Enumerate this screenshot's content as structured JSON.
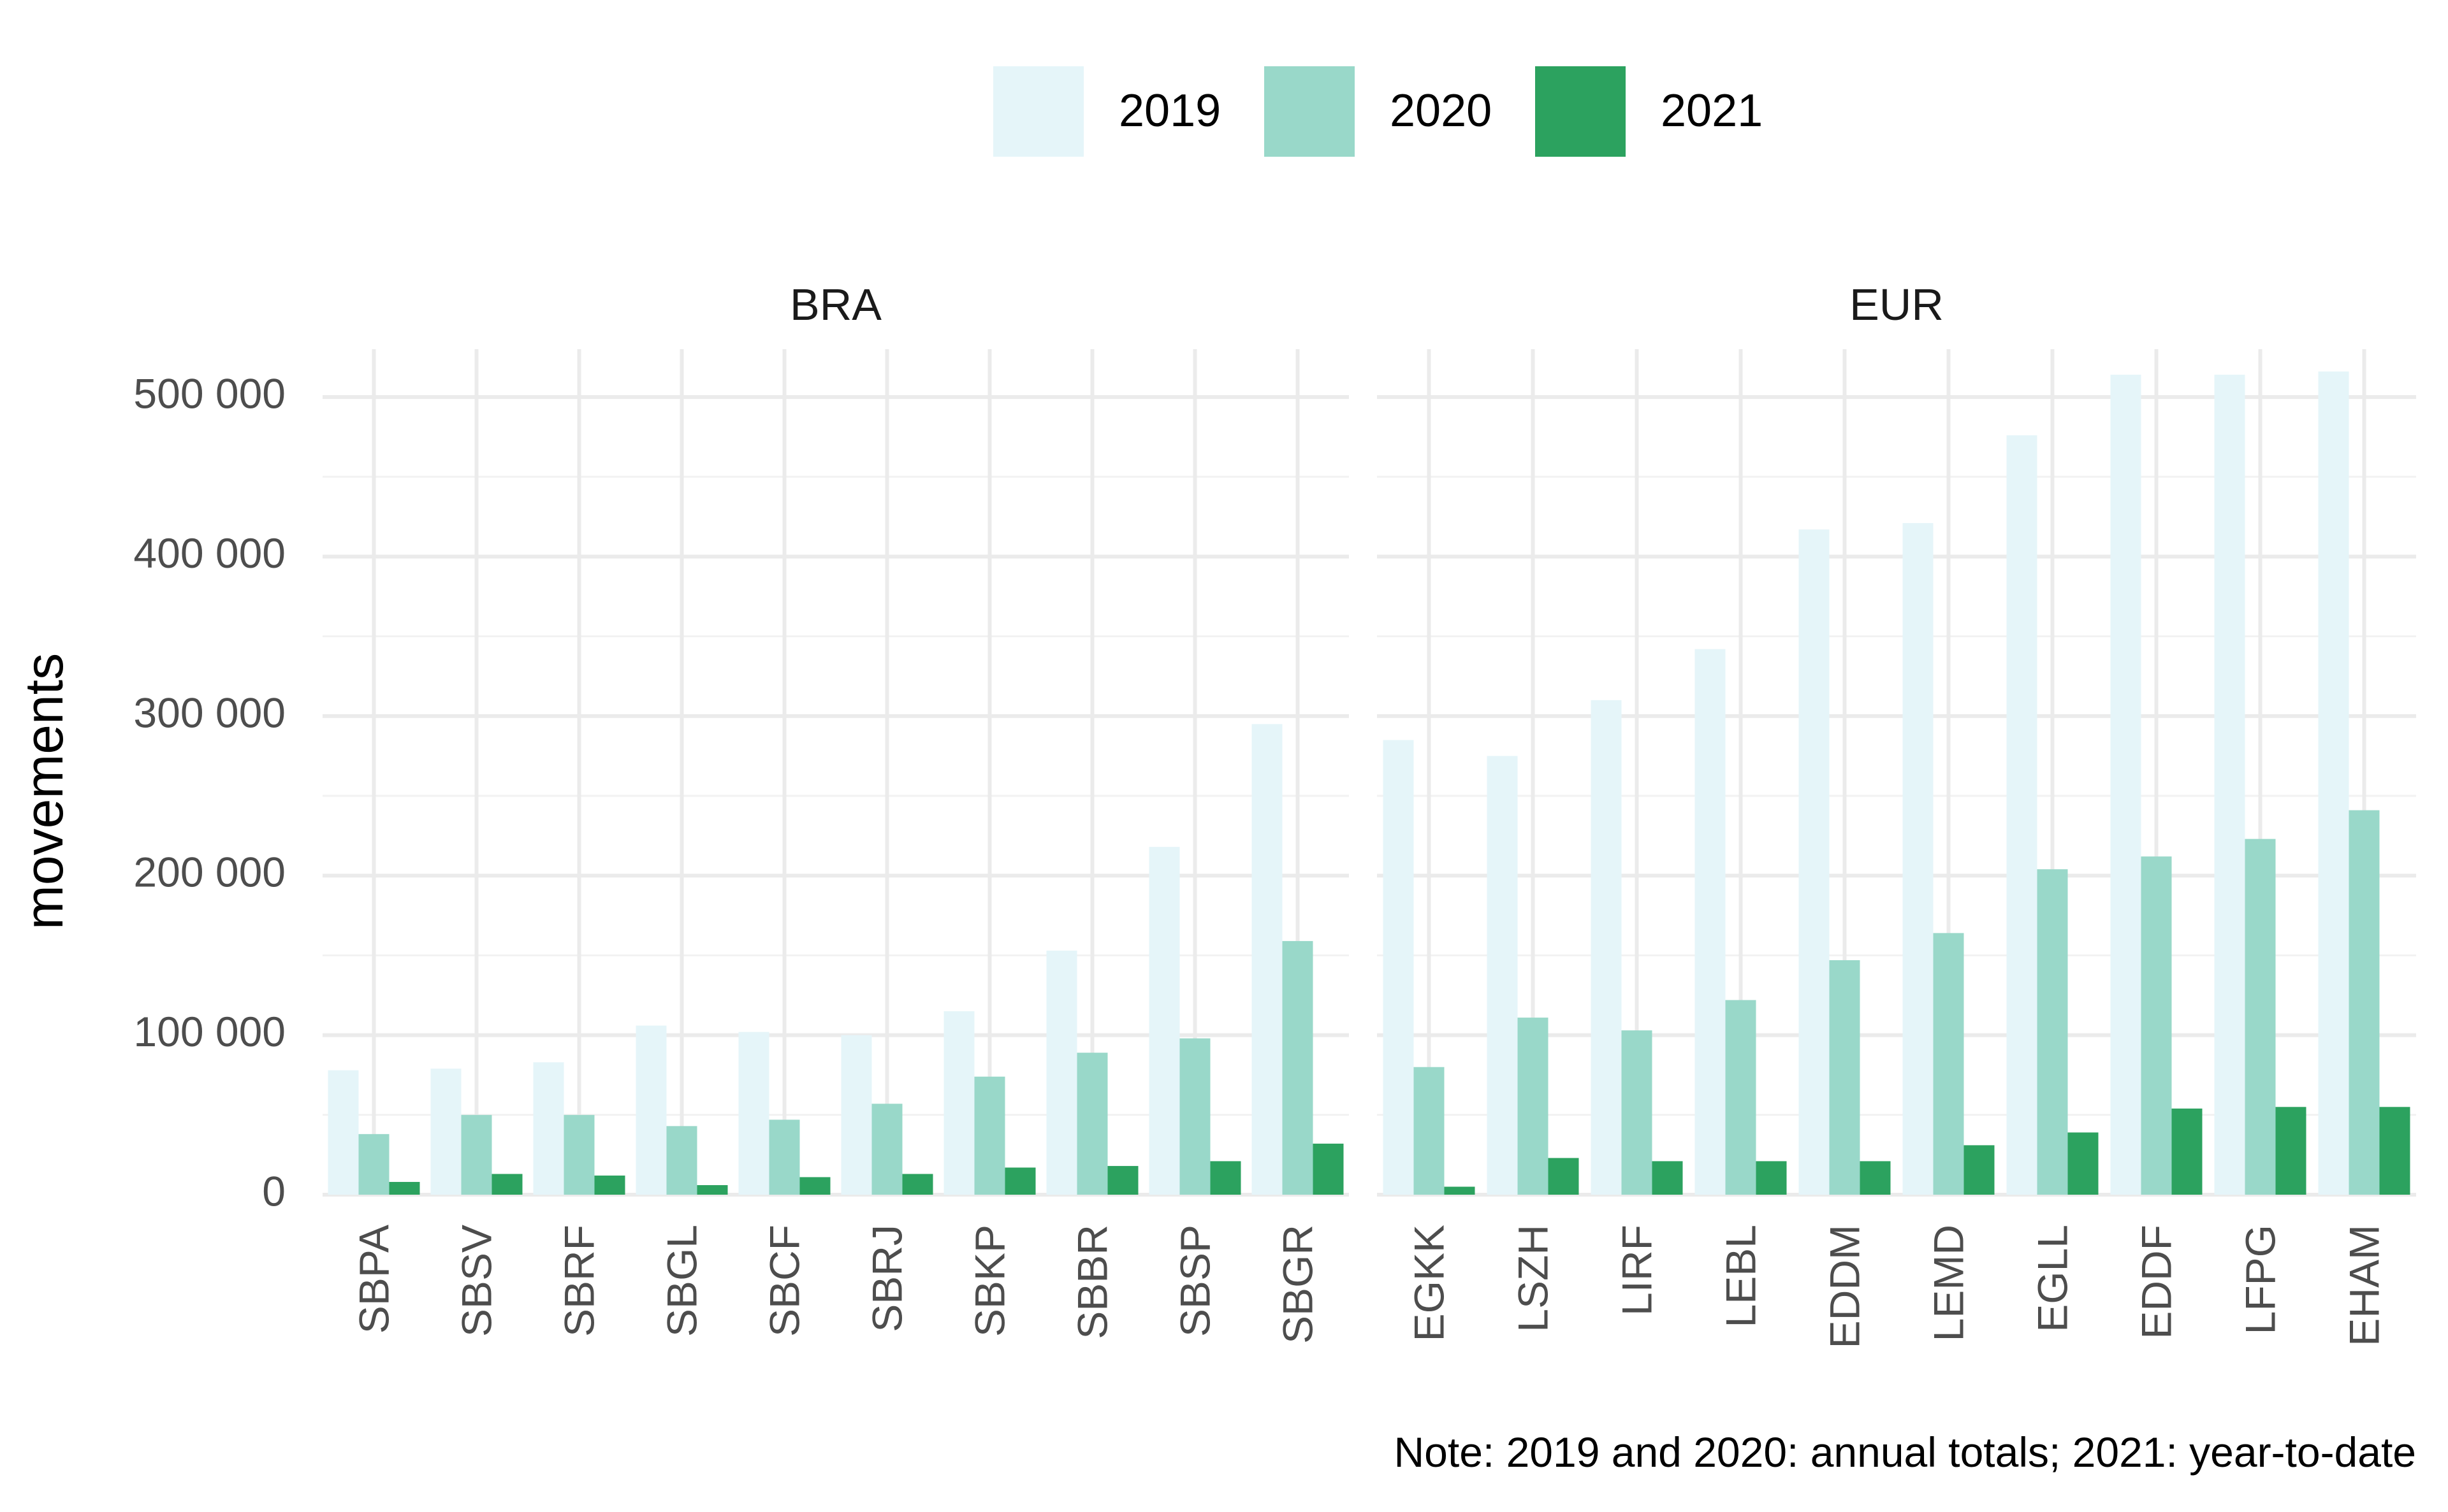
{
  "chart_data": {
    "type": "bar",
    "ylabel": "movements",
    "ylim": [
      0,
      530000
    ],
    "yticks": [
      0,
      100000,
      200000,
      300000,
      400000,
      500000
    ],
    "ytick_labels": [
      "0",
      "100 000",
      "200 000",
      "300 000",
      "400 000",
      "500 000"
    ],
    "legend_position": "top",
    "grid": true,
    "series": [
      {
        "name": "2019",
        "color": "#e5f5f9"
      },
      {
        "name": "2020",
        "color": "#99d8c9"
      },
      {
        "name": "2021",
        "color": "#2ca25f"
      }
    ],
    "facets": [
      {
        "label": "BRA",
        "categories": [
          "SBPA",
          "SBSV",
          "SBRF",
          "SBGL",
          "SBCF",
          "SBRJ",
          "SBKP",
          "SBBR",
          "SBSP",
          "SBGR"
        ],
        "values": {
          "2019": [
            78000,
            79000,
            83000,
            106000,
            102000,
            100000,
            115000,
            153000,
            218000,
            295000
          ],
          "2020": [
            38000,
            50000,
            50000,
            43000,
            47000,
            57000,
            74000,
            89000,
            98000,
            159000
          ],
          "2021": [
            8000,
            13000,
            12000,
            6000,
            11000,
            13000,
            17000,
            18000,
            21000,
            32000
          ]
        }
      },
      {
        "label": "EUR",
        "categories": [
          "EGKK",
          "LSZH",
          "LIRF",
          "LEBL",
          "EDDM",
          "LEMD",
          "EGLL",
          "EDDF",
          "LFPG",
          "EHAM"
        ],
        "values": {
          "2019": [
            285000,
            275000,
            310000,
            342000,
            417000,
            421000,
            476000,
            514000,
            514000,
            516000
          ],
          "2020": [
            80000,
            111000,
            103000,
            122000,
            147000,
            164000,
            204000,
            212000,
            223000,
            241000
          ],
          "2021": [
            5000,
            23000,
            21000,
            21000,
            21000,
            31000,
            39000,
            54000,
            55000,
            55000
          ]
        }
      }
    ],
    "note": "Note: 2019 and 2020: annual totals; 2021: year-to-date"
  }
}
